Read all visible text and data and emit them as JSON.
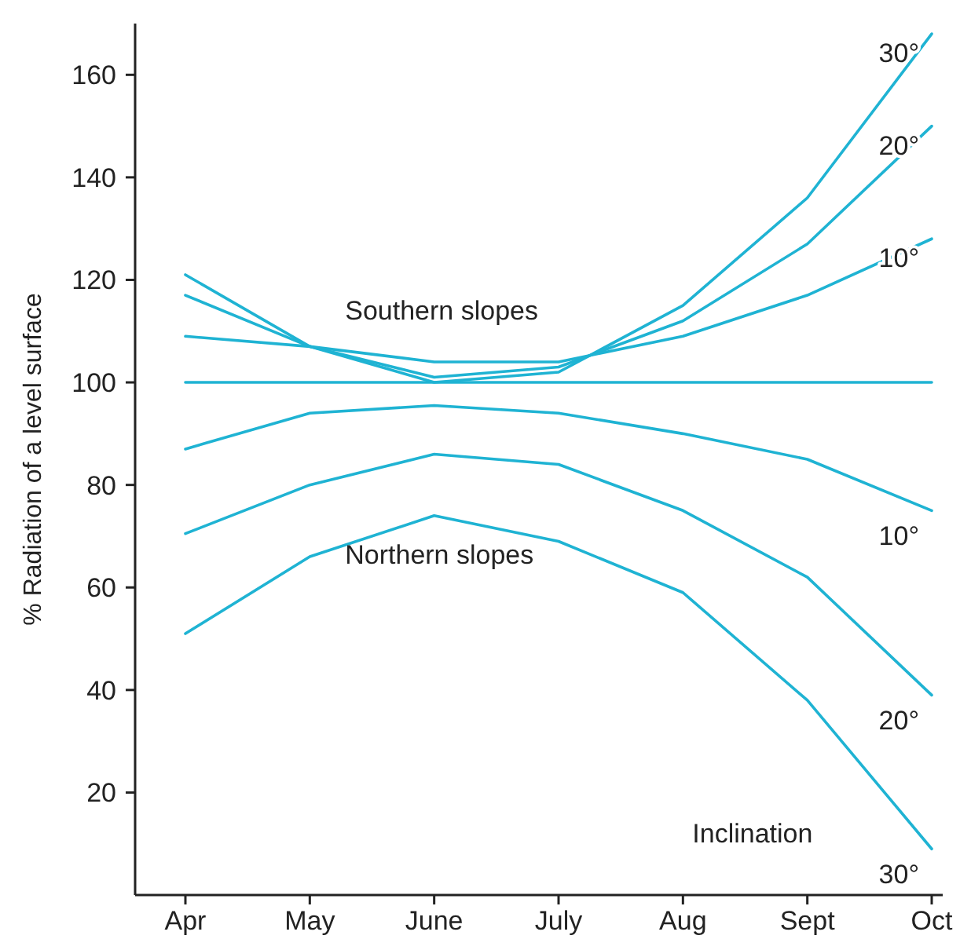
{
  "chart_data": {
    "type": "line",
    "ylabel": "% Radiation of a level surface",
    "categories": [
      "Apr",
      "May",
      "June",
      "July",
      "Aug",
      "Sept",
      "Oct"
    ],
    "ylim": [
      0,
      170
    ],
    "yticks": [
      20,
      40,
      60,
      80,
      100,
      120,
      140,
      160
    ],
    "grid": false,
    "marker": "none",
    "line_style": "solid",
    "series": [
      {
        "name": "30°",
        "color": "#1fb3d3",
        "values": [
          121,
          107,
          100,
          102,
          115,
          136,
          168
        ]
      },
      {
        "name": "20°",
        "color": "#1fb3d3",
        "values": [
          117,
          107,
          101,
          103,
          112,
          127,
          150
        ]
      },
      {
        "name": "10°",
        "color": "#1fb3d3",
        "values": [
          109,
          107,
          104,
          104,
          109,
          117,
          128
        ]
      },
      {
        "color": "#1fb3d3",
        "values": [
          100,
          100,
          100,
          100,
          100,
          100,
          100
        ]
      },
      {
        "name": "10°",
        "color": "#1fb3d3",
        "values": [
          87,
          94,
          95.5,
          94,
          90,
          85,
          75
        ]
      },
      {
        "name": "20°",
        "color": "#1fb3d3",
        "values": [
          70.5,
          80,
          86,
          84,
          75,
          62,
          39
        ]
      },
      {
        "name": "30°",
        "color": "#1fb3d3",
        "values": [
          51,
          66,
          74,
          69,
          59,
          38,
          9
        ]
      }
    ],
    "annotations": [
      "Southern slopes",
      "Northern slopes",
      "Inclination"
    ]
  }
}
